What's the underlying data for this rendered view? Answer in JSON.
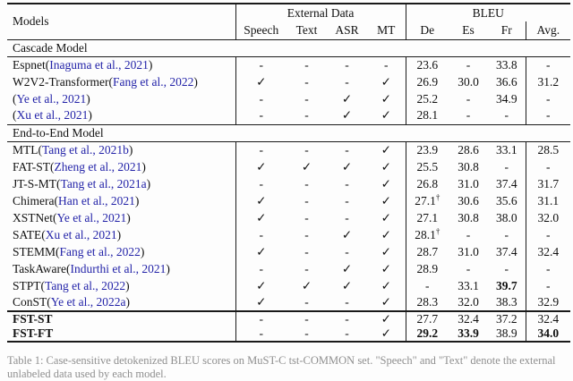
{
  "table": {
    "header": {
      "models_label": "Models",
      "groups": [
        {
          "label": "External Data",
          "cols": [
            "Speech",
            "Text",
            "ASR",
            "MT"
          ]
        },
        {
          "label": "BLEU",
          "cols": [
            "De",
            "Es",
            "Fr",
            "Avg."
          ]
        }
      ]
    },
    "paren_open": "(",
    "paren_close": ")",
    "sections": [
      {
        "label": "Cascade Model",
        "rows": [
          {
            "name": "Espnet",
            "cite": "Inaguma et al., 2021",
            "ext": [
              "-",
              "-",
              "-",
              "-"
            ],
            "bleu": [
              "23.6",
              "-",
              "33.8",
              "-"
            ]
          },
          {
            "name": "W2V2-Transformer",
            "cite": "Fang et al., 2022",
            "ext": [
              "✓",
              "-",
              "-",
              "✓"
            ],
            "bleu": [
              "26.9",
              "30.0",
              "36.6",
              "31.2"
            ]
          },
          {
            "name": "",
            "cite": "Ye et al., 2021",
            "ext": [
              "-",
              "-",
              "✓",
              "✓"
            ],
            "bleu": [
              "25.2",
              "-",
              "34.9",
              "-"
            ]
          },
          {
            "name": "",
            "cite": "Xu et al., 2021",
            "ext": [
              "-",
              "-",
              "✓",
              "✓"
            ],
            "bleu": [
              "28.1",
              "-",
              "-",
              "-"
            ]
          }
        ]
      },
      {
        "label": "End-to-End Model",
        "rows": [
          {
            "name": "MTL",
            "cite": "Tang et al., 2021b",
            "ext": [
              "-",
              "-",
              "-",
              "✓"
            ],
            "bleu": [
              "23.9",
              "28.6",
              "33.1",
              "28.5"
            ]
          },
          {
            "name": "FAT-ST",
            "cite": "Zheng et al., 2021",
            "ext": [
              "✓",
              "✓",
              "✓",
              "✓"
            ],
            "bleu": [
              "25.5",
              "30.8",
              "-",
              "-"
            ]
          },
          {
            "name": "JT-S-MT",
            "cite": "Tang et al., 2021a",
            "ext": [
              "-",
              "-",
              "-",
              "✓"
            ],
            "bleu": [
              "26.8",
              "31.0",
              "37.4",
              "31.7"
            ]
          },
          {
            "name": "Chimera",
            "cite": "Han et al., 2021",
            "ext": [
              "✓",
              "-",
              "-",
              "✓"
            ],
            "bleu": [
              "27.1",
              "30.6",
              "35.6",
              "31.1"
            ],
            "sup": "†",
            "sup_col": 0
          },
          {
            "name": "XSTNet",
            "cite": "Ye et al., 2021",
            "ext": [
              "✓",
              "-",
              "-",
              "✓"
            ],
            "bleu": [
              "27.1",
              "30.8",
              "38.0",
              "32.0"
            ]
          },
          {
            "name": "SATE",
            "cite": "Xu et al., 2021",
            "ext": [
              "-",
              "-",
              "✓",
              "✓"
            ],
            "bleu": [
              "28.1",
              "-",
              "-",
              "-"
            ],
            "sup": "†",
            "sup_col": 0
          },
          {
            "name": "STEMM",
            "cite": "Fang et al., 2022",
            "ext": [
              "✓",
              "-",
              "-",
              "✓"
            ],
            "bleu": [
              "28.7",
              "31.0",
              "37.4",
              "32.4"
            ]
          },
          {
            "name": "TaskAware",
            "cite": "Indurthi et al., 2021",
            "ext": [
              "-",
              "-",
              "✓",
              "✓"
            ],
            "bleu": [
              "28.9",
              "-",
              "-",
              "-"
            ]
          },
          {
            "name": "STPT",
            "cite": "Tang et al., 2022",
            "ext": [
              "✓",
              "✓",
              "✓",
              "✓"
            ],
            "bleu": [
              "-",
              "33.1",
              "39.7",
              "-"
            ],
            "bold_cols": [
              2
            ]
          },
          {
            "name": "ConST",
            "cite": "Ye et al., 2022a",
            "ext": [
              "✓",
              "-",
              "-",
              "✓"
            ],
            "bleu": [
              "28.3",
              "32.0",
              "38.3",
              "32.9"
            ]
          }
        ]
      },
      {
        "label": null,
        "thick": true,
        "rows": [
          {
            "name": "FST-ST",
            "cite": "",
            "bold_name": true,
            "ext": [
              "-",
              "-",
              "-",
              "✓"
            ],
            "bleu": [
              "27.7",
              "32.4",
              "37.2",
              "32.4"
            ]
          },
          {
            "name": "FST-FT",
            "cite": "",
            "bold_name": true,
            "ext": [
              "-",
              "-",
              "-",
              "✓"
            ],
            "bleu": [
              "29.2",
              "33.9",
              "38.9",
              "34.0"
            ],
            "bold_cols": [
              0,
              1,
              3
            ]
          }
        ]
      }
    ]
  },
  "caption_partial": "Table 1: Case-sensitive detokenized BLEU scores on MuST-C tst-COMMON set. \"Speech\" and \"Text\" denote the external unlabeled data used by each model."
}
